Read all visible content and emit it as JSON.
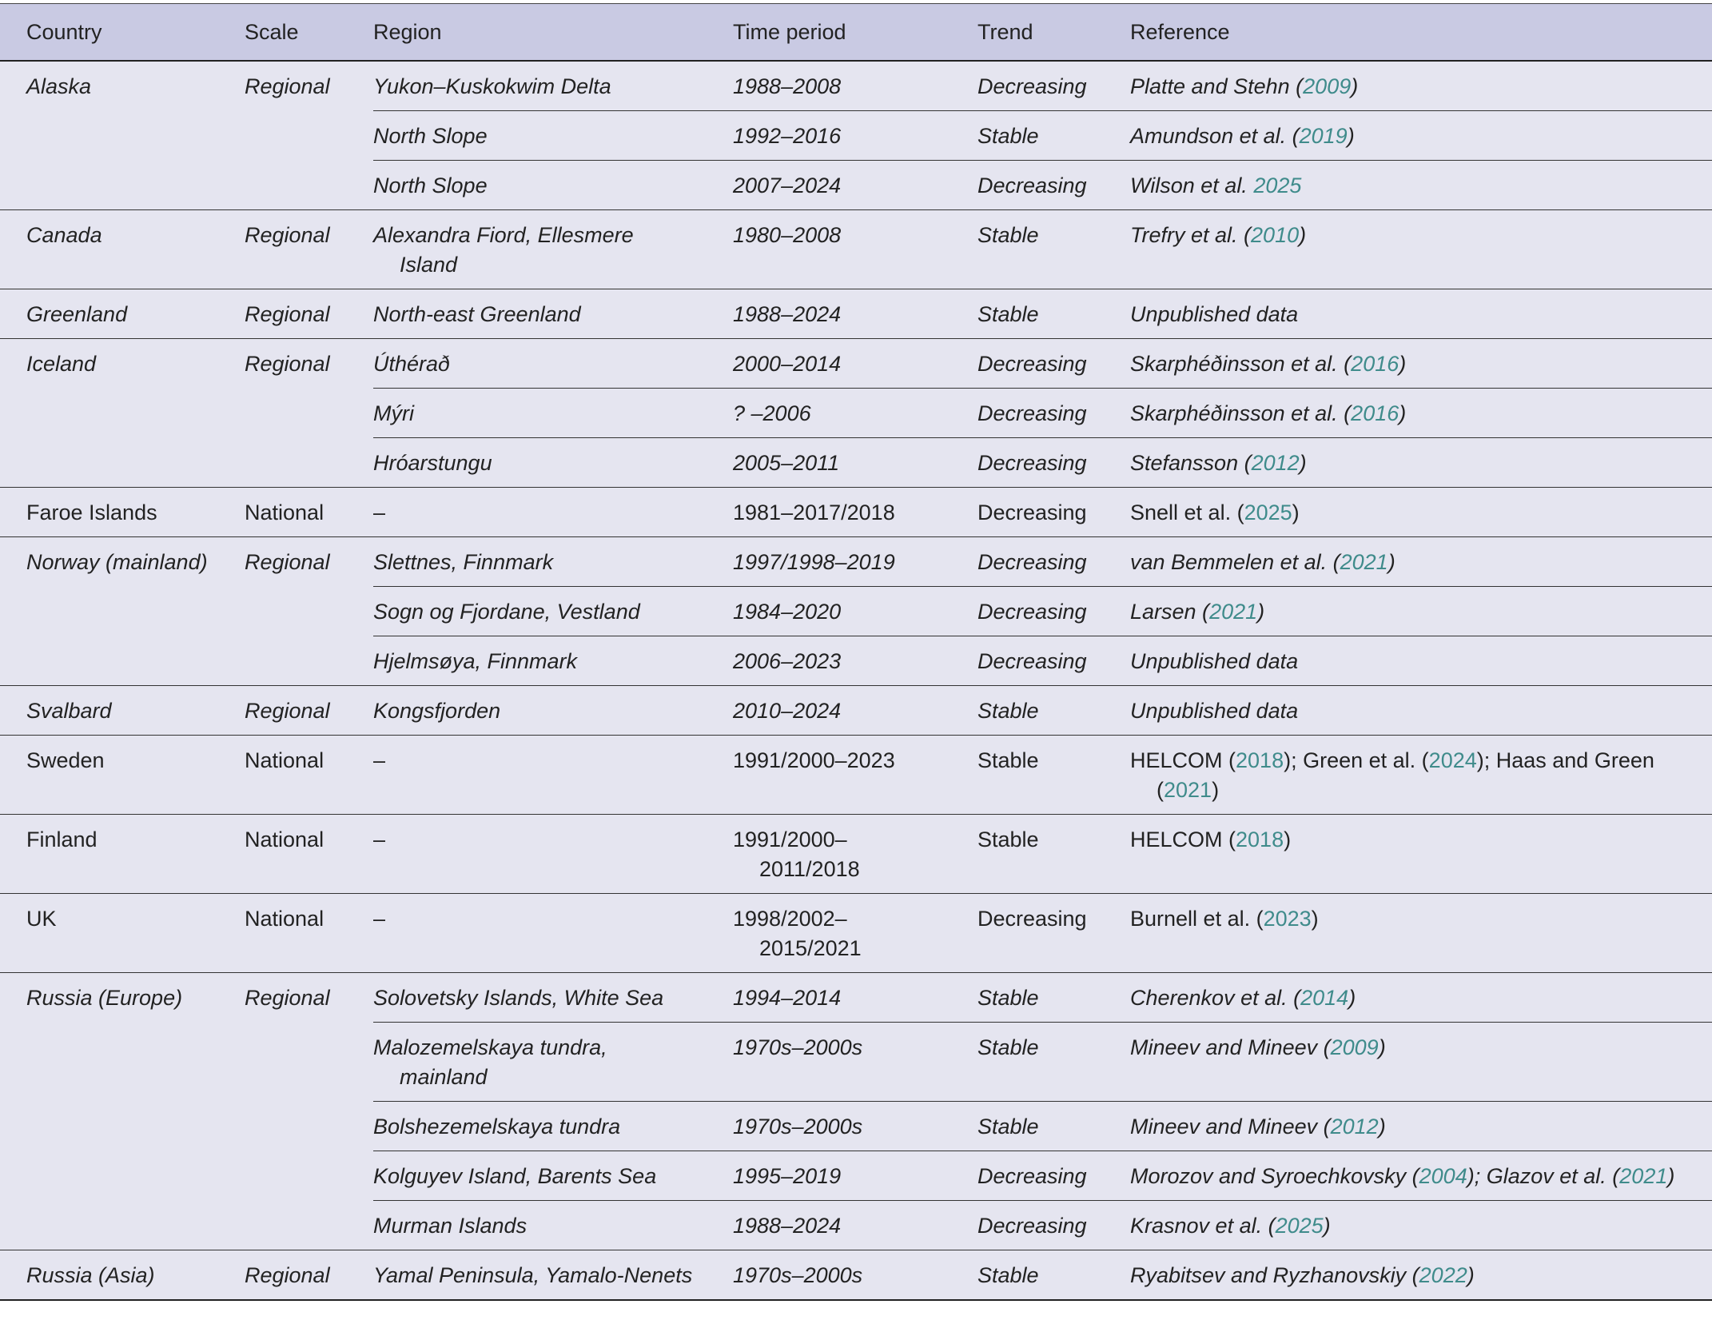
{
  "table": {
    "headers": [
      "Country",
      "Scale",
      "Region",
      "Time period",
      "Trend",
      "Reference"
    ],
    "groups": [
      {
        "country": "Alaska",
        "scale": "Regional",
        "italic": true,
        "rows": [
          {
            "region": "Yukon–Kuskokwim Delta",
            "period": "1988–2008",
            "trend": "Decreasing",
            "reference": [
              "Platte and Stehn (",
              {
                "text": "2009",
                "link": true
              },
              ")"
            ]
          },
          {
            "region": "North Slope",
            "period": "1992–2016",
            "trend": "Stable",
            "reference": [
              "Amundson et al. (",
              {
                "text": "2019",
                "link": true
              },
              ")"
            ]
          },
          {
            "region": "North Slope",
            "period": "2007–2024",
            "trend": "Decreasing",
            "reference": [
              "Wilson et al. ",
              {
                "text": "2025",
                "link": true
              }
            ]
          }
        ]
      },
      {
        "country": "Canada",
        "scale": "Regional",
        "italic": true,
        "rows": [
          {
            "region": "Alexandra Fiord, Ellesmere Island",
            "period": "1980–2008",
            "trend": "Stable",
            "reference": [
              "Trefry et al. (",
              {
                "text": "2010",
                "link": true
              },
              ")"
            ]
          }
        ]
      },
      {
        "country": "Greenland",
        "scale": "Regional",
        "italic": true,
        "rows": [
          {
            "region": "North-east Greenland",
            "period": "1988–2024",
            "trend": "Stable",
            "reference": [
              "Unpublished data"
            ]
          }
        ]
      },
      {
        "country": "Iceland",
        "scale": "Regional",
        "italic": true,
        "rows": [
          {
            "region": "Úthérað",
            "period": "2000–2014",
            "trend": "Decreasing",
            "reference": [
              "Skarphéðinsson et al. (",
              {
                "text": "2016",
                "link": true
              },
              ")"
            ]
          },
          {
            "region": "Mýri",
            "period": "? –2006",
            "trend": "Decreasing",
            "reference": [
              "Skarphéðinsson et al. (",
              {
                "text": "2016",
                "link": true
              },
              ")"
            ]
          },
          {
            "region": "Hróarstungu",
            "period": "2005–2011",
            "trend": "Decreasing",
            "reference": [
              "Stefansson (",
              {
                "text": "2012",
                "link": true
              },
              ")"
            ]
          }
        ]
      },
      {
        "country": "Faroe Islands",
        "scale": "National",
        "italic": false,
        "rows": [
          {
            "region": "–",
            "period": "1981–2017/2018",
            "trend": "Decreasing",
            "reference": [
              "Snell et al. (",
              {
                "text": "2025",
                "link": true
              },
              ")"
            ]
          }
        ]
      },
      {
        "country": "Norway (mainland)",
        "scale": "Regional",
        "italic": true,
        "rows": [
          {
            "region": "Slettnes, Finnmark",
            "period": "1997/1998–2019",
            "trend": "Decreasing",
            "reference": [
              "van Bemmelen et al. (",
              {
                "text": "2021",
                "link": true
              },
              ")"
            ]
          },
          {
            "region": "Sogn og Fjordane, Vestland",
            "period": "1984–2020",
            "trend": "Decreasing",
            "reference": [
              "Larsen (",
              {
                "text": "2021",
                "link": true
              },
              ")"
            ]
          },
          {
            "region": "Hjelmsøya, Finnmark",
            "period": "2006–2023",
            "trend": "Decreasing",
            "reference": [
              "Unpublished data"
            ]
          }
        ]
      },
      {
        "country": "Svalbard",
        "scale": "Regional",
        "italic": true,
        "rows": [
          {
            "region": "Kongsfjorden",
            "period": "2010–2024",
            "trend": "Stable",
            "reference": [
              "Unpublished data"
            ]
          }
        ]
      },
      {
        "country": "Sweden",
        "scale": "National",
        "italic": false,
        "rows": [
          {
            "region": "–",
            "period": "1991/2000–2023",
            "trend": "Stable",
            "reference": [
              "HELCOM (",
              {
                "text": "2018",
                "link": true
              },
              "); Green et al. (",
              {
                "text": "2024",
                "link": true
              },
              "); Haas and Green (",
              {
                "text": "2021",
                "link": true
              },
              ")"
            ]
          }
        ]
      },
      {
        "country": "Finland",
        "scale": "National",
        "italic": false,
        "rows": [
          {
            "region": "–",
            "period": "1991/2000–2011/2018",
            "trend": "Stable",
            "reference": [
              "HELCOM (",
              {
                "text": "2018",
                "link": true
              },
              ")"
            ]
          }
        ]
      },
      {
        "country": "UK",
        "scale": "National",
        "italic": false,
        "rows": [
          {
            "region": "–",
            "period": "1998/2002–2015/2021",
            "trend": "Decreasing",
            "reference": [
              "Burnell et al. (",
              {
                "text": "2023",
                "link": true
              },
              ")"
            ]
          }
        ]
      },
      {
        "country": "Russia (Europe)",
        "scale": "Regional",
        "italic": true,
        "rows": [
          {
            "region": "Solovetsky Islands, White Sea",
            "period": "1994–2014",
            "trend": "Stable",
            "reference": [
              "Cherenkov et al. (",
              {
                "text": "2014",
                "link": true
              },
              ")"
            ]
          },
          {
            "region": "Malozemelskaya tundra, mainland",
            "period": "1970s–2000s",
            "trend": "Stable",
            "reference": [
              "Mineev and Mineev (",
              {
                "text": "2009",
                "link": true
              },
              ")"
            ]
          },
          {
            "region": "Bolshezemelskaya tundra",
            "period": "1970s–2000s",
            "trend": "Stable",
            "reference": [
              "Mineev and Mineev (",
              {
                "text": "2012",
                "link": true
              },
              ")"
            ]
          },
          {
            "region": "Kolguyev Island, Barents Sea",
            "period": "1995–2019",
            "trend": "Decreasing",
            "reference": [
              "Morozov and Syroechkovsky (",
              {
                "text": "2004",
                "link": true
              },
              "); Glazov et al. (",
              {
                "text": "2021",
                "link": true
              },
              ")"
            ]
          },
          {
            "region": "Murman Islands",
            "period": "1988–2024",
            "trend": "Decreasing",
            "reference": [
              "Krasnov et al. (",
              {
                "text": "2025",
                "link": true
              },
              ")"
            ]
          }
        ]
      },
      {
        "country": "Russia (Asia)",
        "scale": "Regional",
        "italic": true,
        "rows": [
          {
            "region": "Yamal Peninsula, Yamalo-Nenets",
            "period": "1970s–2000s",
            "trend": "Stable",
            "reference": [
              "Ryabitsev and Ryzhanovskiy (",
              {
                "text": "2022",
                "link": true
              },
              ")"
            ]
          }
        ]
      }
    ]
  }
}
